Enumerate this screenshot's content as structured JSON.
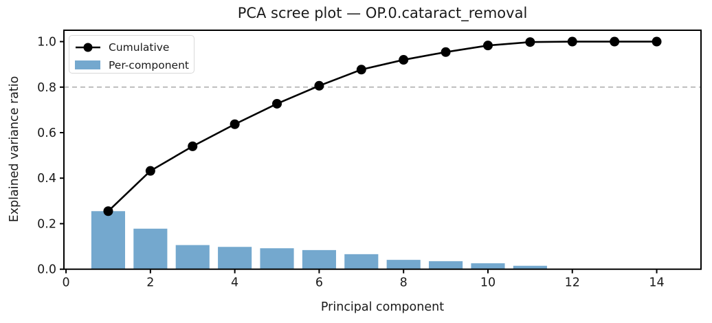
{
  "title": "PCA scree plot — OP.0.cataract_removal",
  "colors": {
    "bar": "#74a8ce",
    "line": "#000000",
    "threshold": "#9a9a9a",
    "axis": "#000000",
    "text": "#1a1a1a",
    "legend_border": "#d8d8d8",
    "background": "#ffffff"
  },
  "chart_data": {
    "type": "bar",
    "title": "PCA scree plot — OP.0.cataract_removal",
    "xlabel": "Principal component",
    "ylabel": "Explained variance ratio",
    "x": [
      1,
      2,
      3,
      4,
      5,
      6,
      7,
      8,
      9,
      10,
      11,
      12,
      13,
      14
    ],
    "series": [
      {
        "name": "Cumulative",
        "type": "line",
        "color": "#000000",
        "marker": "circle",
        "values": [
          0.255,
          0.432,
          0.54,
          0.637,
          0.727,
          0.806,
          0.877,
          0.92,
          0.954,
          0.983,
          0.998,
          1.0,
          1.0,
          1.0
        ]
      },
      {
        "name": "Per-component",
        "type": "bar",
        "color": "#74a8ce",
        "values": [
          0.255,
          0.178,
          0.106,
          0.098,
          0.092,
          0.084,
          0.066,
          0.041,
          0.035,
          0.026,
          0.015,
          0.001,
          0.001,
          0.001
        ]
      }
    ],
    "threshold_line": {
      "y": 0.8,
      "style": "dashed",
      "color": "#9a9a9a"
    },
    "xticks": [
      0,
      2,
      4,
      6,
      8,
      10,
      12,
      14
    ],
    "yticks": [
      "0.0",
      "0.2",
      "0.4",
      "0.6",
      "0.8",
      "1.0"
    ],
    "xlim": [
      -0.05,
      15.05
    ],
    "ylim": [
      0,
      1.05
    ],
    "bar_width": 0.8,
    "legend_position": "upper left",
    "grid": false
  }
}
